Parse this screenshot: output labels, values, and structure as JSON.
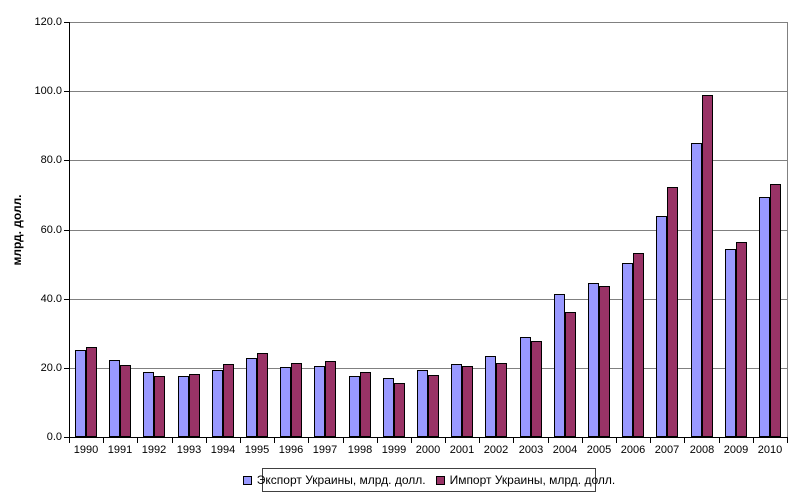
{
  "chart_data": {
    "type": "bar",
    "title": "",
    "xlabel": "",
    "ylabel": "млрд. долл.",
    "ylim": [
      0,
      120
    ],
    "ytick_step": 20,
    "ytick_labels": [
      "0.0",
      "20.0",
      "40.0",
      "60.0",
      "80.0",
      "100.0",
      "120.0"
    ],
    "grid": true,
    "legend_position": "bottom",
    "categories": [
      1990,
      1991,
      1992,
      1993,
      1994,
      1995,
      1996,
      1997,
      1998,
      1999,
      2000,
      2001,
      2002,
      2003,
      2004,
      2005,
      2006,
      2007,
      2008,
      2009,
      2010
    ],
    "series": [
      {
        "key": "export",
        "name": "Экспорт Украины, млрд. долл.",
        "color": "#9999FF",
        "values": [
          25.1,
          22.4,
          18.9,
          17.7,
          19.4,
          22.8,
          20.3,
          20.4,
          17.6,
          17.1,
          19.5,
          21.1,
          23.4,
          28.9,
          41.3,
          44.4,
          50.2,
          64.0,
          85.0,
          54.3,
          69.5
        ]
      },
      {
        "key": "import",
        "name": "Импорт Украины, млрд. долл.",
        "color": "#993366",
        "values": [
          26.0,
          20.9,
          17.5,
          18.3,
          21.0,
          24.3,
          21.5,
          21.9,
          18.8,
          15.5,
          18.0,
          20.5,
          21.5,
          27.7,
          36.2,
          43.7,
          53.3,
          72.2,
          99.0,
          56.3,
          73.2
        ]
      }
    ],
    "colors": {
      "background": "#FFFFFF",
      "gridline": "#808080",
      "axis": "#000000",
      "plot_border": "#808080",
      "bar_border": "#000000"
    }
  }
}
